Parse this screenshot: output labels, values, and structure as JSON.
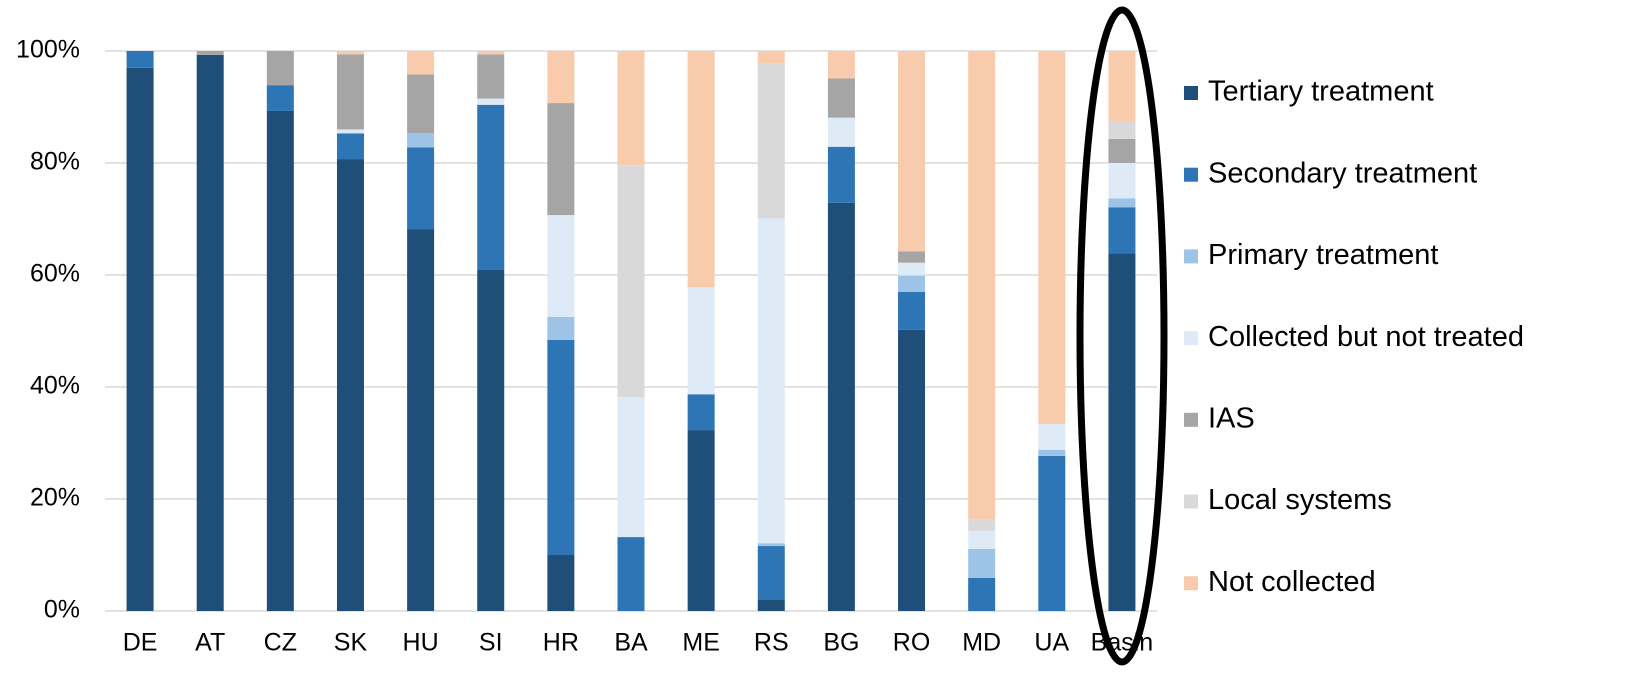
{
  "chart_data": {
    "type": "stacked_bar",
    "categories": [
      "DE",
      "AT",
      "CZ",
      "SK",
      "HU",
      "SI",
      "HR",
      "BA",
      "ME",
      "RS",
      "BG",
      "RO",
      "MD",
      "UA",
      "Basin"
    ],
    "series": [
      {
        "name": "Tertiary treatment",
        "color": "#1f4e79",
        "values": [
          97,
          99.3,
          89.3,
          80.7,
          68.2,
          60.9,
          10,
          0,
          32.3,
          2.1,
          72.9,
          50.2,
          0,
          0,
          63.9
        ]
      },
      {
        "name": "Secondary treatment",
        "color": "#2e75b6",
        "values": [
          3,
          0,
          4.6,
          4.6,
          14.6,
          29.5,
          38.4,
          13.2,
          6.4,
          9.5,
          10,
          6.8,
          5.9,
          27.7,
          8.2
        ]
      },
      {
        "name": "Primary treatment",
        "color": "#9dc3e6",
        "values": [
          0,
          0,
          0,
          0,
          2.5,
          0,
          4.1,
          0,
          0,
          0.5,
          0,
          2.9,
          5.2,
          1.1,
          1.6
        ]
      },
      {
        "name": "Collected but not treated",
        "color": "#deebf7",
        "values": [
          0,
          0,
          0,
          0.7,
          0,
          1.1,
          18.2,
          25,
          19.1,
          58,
          5.2,
          2.3,
          3.2,
          4.6,
          6.3
        ]
      },
      {
        "name": "IAS",
        "color": "#a5a5a5",
        "values": [
          0,
          0.7,
          6.1,
          13.4,
          10.5,
          7.9,
          20,
          0,
          0,
          0,
          7,
          2,
          0,
          0,
          4.3
        ]
      },
      {
        "name": "Local systems",
        "color": "#d9d9d9",
        "values": [
          0,
          0,
          0,
          0,
          0,
          0,
          0,
          41.4,
          0,
          27.7,
          0,
          0,
          2,
          0,
          3.2
        ]
      },
      {
        "name": "Not collected",
        "color": "#f8cbad",
        "values": [
          0,
          0,
          0,
          0.6,
          4.2,
          0.6,
          9.3,
          20.4,
          42.2,
          2.2,
          4.9,
          35.8,
          83.7,
          66.6,
          12.5
        ]
      }
    ],
    "ylim": [
      0,
      100
    ],
    "yticks": [
      {
        "value": 0,
        "label": "0%"
      },
      {
        "value": 20,
        "label": "20%"
      },
      {
        "value": 40,
        "label": "40%"
      },
      {
        "value": 60,
        "label": "60%"
      },
      {
        "value": 80,
        "label": "80%"
      },
      {
        "value": 100,
        "label": "100%"
      }
    ],
    "grid": true,
    "legend": "right"
  }
}
